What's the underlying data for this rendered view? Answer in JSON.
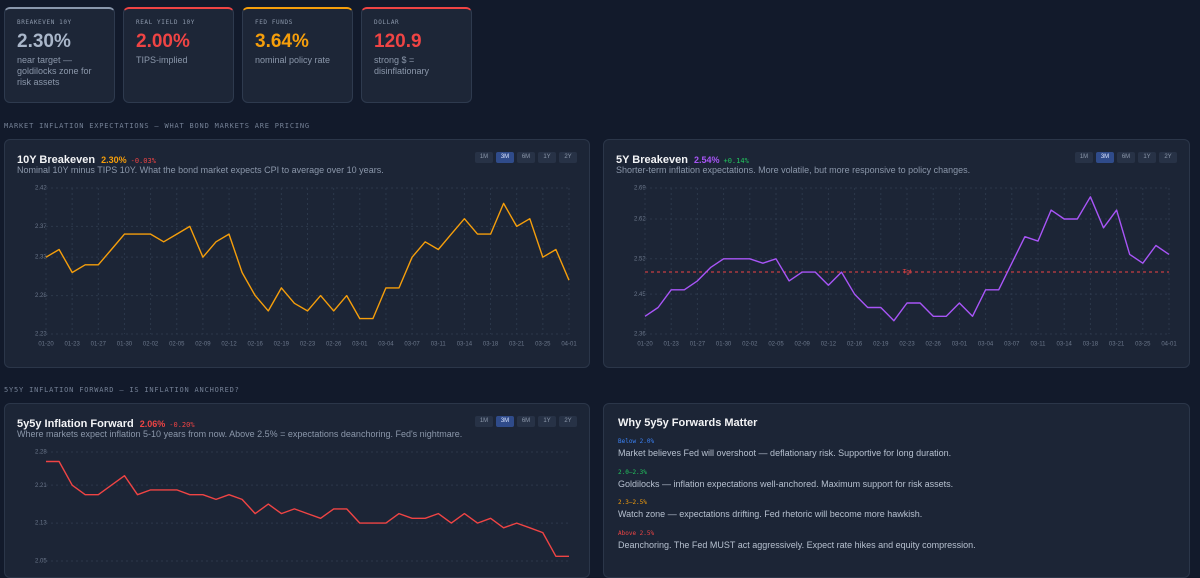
{
  "cards": [
    {
      "label": "BREAKEVEN 10Y",
      "value": "2.30%",
      "note": "near target — goldilocks zone for risk assets",
      "color": "#a9b6c9",
      "accent": "#8a98ad"
    },
    {
      "label": "REAL YIELD 10Y",
      "value": "2.00%",
      "note": "TIPS-implied",
      "color": "#ef4444",
      "accent": "#ef4444"
    },
    {
      "label": "FED FUNDS",
      "value": "3.64%",
      "note": "nominal policy rate",
      "color": "#f59e0b",
      "accent": "#f59e0b"
    },
    {
      "label": "DOLLAR",
      "value": "120.9",
      "note": "strong $ = disinflationary",
      "color": "#ef4444",
      "accent": "#ef4444"
    }
  ],
  "sections": [
    "MARKET INFLATION EXPECTATIONS — WHAT BOND MARKETS ARE PRICING",
    "5Y5Y INFLATION FORWARD — IS INFLATION ANCHORED?"
  ],
  "range_buttons": [
    "1M",
    "3M",
    "6M",
    "1Y",
    "2Y"
  ],
  "active_range": "3M",
  "charts": [
    {
      "type": "line",
      "title": "10Y Breakeven",
      "value": "2.30%",
      "change": "-0.03%",
      "change_color": "#ef4444",
      "subtitle": "Nominal 10Y minus TIPS 10Y. What the bond market expects CPI to average over 10 years.",
      "color": "#f59e0b",
      "grid": true,
      "categories": [
        "01-20",
        null,
        "01-23",
        null,
        "01-27",
        null,
        "01-30",
        null,
        "02-02",
        null,
        "02-05",
        null,
        "02-09",
        null,
        "02-12",
        null,
        "02-16",
        null,
        "02-19",
        null,
        "02-23",
        null,
        "02-26",
        null,
        "03-01",
        null,
        "03-04",
        null,
        "03-07",
        null,
        "03-11",
        null,
        "03-14",
        null,
        "03-18",
        null,
        "03-21",
        null,
        "03-25",
        null,
        "04-01"
      ],
      "values": [
        2.33,
        2.34,
        2.31,
        2.32,
        2.32,
        2.34,
        2.36,
        2.36,
        2.36,
        2.35,
        2.36,
        2.37,
        2.33,
        2.35,
        2.36,
        2.31,
        2.28,
        2.26,
        2.29,
        2.27,
        2.26,
        2.28,
        2.26,
        2.28,
        2.25,
        2.25,
        2.29,
        2.29,
        2.33,
        2.35,
        2.34,
        2.36,
        2.38,
        2.36,
        2.36,
        2.4,
        2.37,
        2.38,
        2.33,
        2.34,
        2.3
      ],
      "ylim": [
        2.23,
        2.42
      ],
      "yticks": [
        2.23,
        2.28,
        2.33,
        2.37,
        2.42
      ]
    },
    {
      "type": "line",
      "title": "5Y Breakeven",
      "value": "2.54%",
      "change": "+0.14%",
      "change_color": "#22c55e",
      "subtitle": "Shorter-term inflation expectations. More volatile, but more responsive to policy changes.",
      "color": "#a855f7",
      "grid": true,
      "categories": [
        "01-20",
        null,
        "01-23",
        null,
        "01-27",
        null,
        "01-30",
        null,
        "02-02",
        null,
        "02-05",
        null,
        "02-09",
        null,
        "02-12",
        null,
        "02-16",
        null,
        "02-19",
        null,
        "02-23",
        null,
        "02-26",
        null,
        "03-01",
        null,
        "03-04",
        null,
        "03-07",
        null,
        "03-11",
        null,
        "03-14",
        null,
        "03-18",
        null,
        "03-21",
        null,
        "03-25",
        null,
        "04-01"
      ],
      "values": [
        2.4,
        2.42,
        2.46,
        2.46,
        2.48,
        2.51,
        2.53,
        2.53,
        2.53,
        2.52,
        2.53,
        2.48,
        2.5,
        2.5,
        2.47,
        2.5,
        2.45,
        2.42,
        2.42,
        2.39,
        2.43,
        2.43,
        2.4,
        2.4,
        2.43,
        2.4,
        2.46,
        2.46,
        2.52,
        2.58,
        2.57,
        2.64,
        2.62,
        2.62,
        2.67,
        2.6,
        2.64,
        2.54,
        2.52,
        2.56,
        2.54
      ],
      "ylim": [
        2.36,
        2.69
      ],
      "yticks": [
        2.36,
        2.45,
        2.53,
        2.62,
        2.69
      ],
      "reference": {
        "value": 2.5,
        "label": "Tgt",
        "color": "#ef4444"
      }
    },
    {
      "type": "line",
      "title": "5y5y Inflation Forward",
      "value": "2.06%",
      "change": "-0.20%",
      "change_color": "#ef4444",
      "subtitle": "Where markets expect inflation 5-10 years from now. Above 2.5% = expectations deanchoring. Fed's nightmare.",
      "color": "#ef4444",
      "grid": true,
      "values": [
        2.26,
        2.26,
        2.21,
        2.19,
        2.19,
        2.21,
        2.23,
        2.19,
        2.2,
        2.2,
        2.2,
        2.19,
        2.19,
        2.18,
        2.19,
        2.18,
        2.15,
        2.17,
        2.15,
        2.16,
        2.15,
        2.14,
        2.16,
        2.16,
        2.13,
        2.13,
        2.13,
        2.15,
        2.14,
        2.14,
        2.15,
        2.13,
        2.15,
        2.13,
        2.14,
        2.12,
        2.13,
        2.12,
        2.11,
        2.06,
        2.06
      ],
      "ylim": [
        2.05,
        2.28
      ],
      "yticks": [
        2.05,
        2.13,
        2.21,
        2.28
      ]
    }
  ],
  "info": {
    "title": "Why 5y5y Forwards Matter",
    "items": [
      {
        "label": "Below 2.0%",
        "color": "#3b82f6",
        "text": "Market believes Fed will overshoot — deflationary risk. Supportive for long duration."
      },
      {
        "label": "2.0–2.3%",
        "color": "#22c55e",
        "text": "Goldilocks — inflation expectations well-anchored. Maximum support for risk assets."
      },
      {
        "label": "2.3–2.5%",
        "color": "#f59e0b",
        "text": "Watch zone — expectations drifting. Fed rhetoric will become more hawkish."
      },
      {
        "label": "Above 2.5%",
        "color": "#ef4444",
        "text": "Deanchoring. The Fed MUST act aggressively. Expect rate hikes and equity compression."
      }
    ]
  }
}
